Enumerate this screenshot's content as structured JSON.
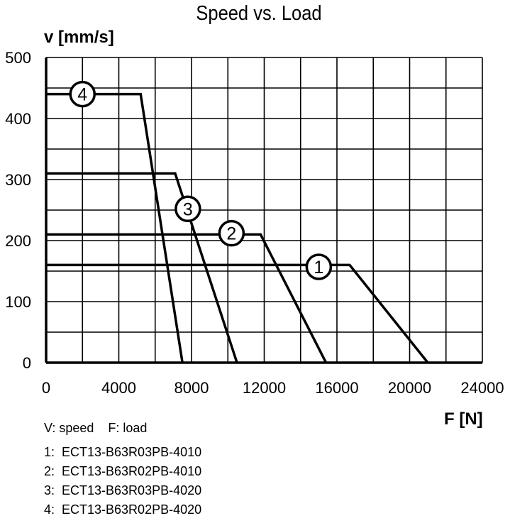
{
  "chart_data": {
    "type": "line",
    "title": "Speed vs. Load",
    "xlabel": "F [N]",
    "ylabel": "v [mm/s]",
    "xlim": [
      0,
      24000
    ],
    "ylim": [
      0,
      500
    ],
    "xticks": [
      "0",
      "4000",
      "8000",
      "12000",
      "16000",
      "20000",
      "24000"
    ],
    "yticks": [
      "0",
      "100",
      "200",
      "300",
      "400",
      "500"
    ],
    "grid": true,
    "series": [
      {
        "name": "1",
        "x": [
          0,
          16700,
          21000
        ],
        "y": [
          160,
          160,
          0
        ]
      },
      {
        "name": "2",
        "x": [
          0,
          11800,
          15400
        ],
        "y": [
          210,
          210,
          0
        ]
      },
      {
        "name": "3",
        "x": [
          0,
          7100,
          10500
        ],
        "y": [
          310,
          310,
          0
        ]
      },
      {
        "name": "4",
        "x": [
          0,
          5200,
          7500
        ],
        "y": [
          440,
          440,
          0
        ]
      }
    ],
    "markers": [
      {
        "label": "1",
        "x": 15000,
        "y": 157
      },
      {
        "label": "2",
        "x": 10200,
        "y": 212
      },
      {
        "label": "3",
        "x": 7800,
        "y": 252
      },
      {
        "label": "4",
        "x": 2000,
        "y": 440
      }
    ],
    "legend_note": "V: speed    F: load",
    "legend": [
      "1:  ECT13-B63R03PB-4010",
      "2:  ECT13-B63R02PB-4010",
      "3:  ECT13-B63R03PB-4020",
      "4:  ECT13-B63R02PB-4020"
    ]
  }
}
